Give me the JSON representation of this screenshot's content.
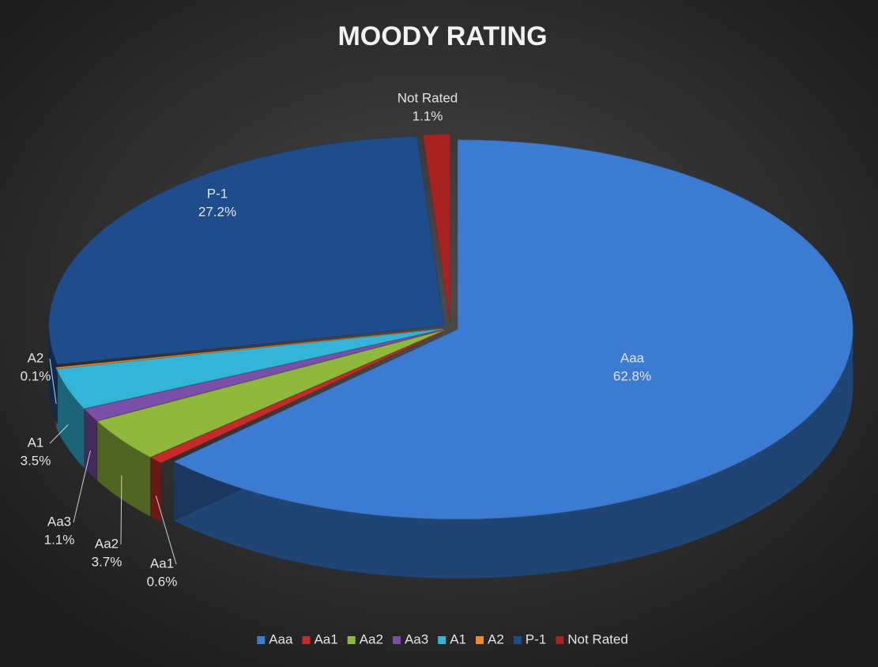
{
  "chart_data": {
    "type": "pie3d",
    "title": "MOODY RATING",
    "categories": [
      "Aaa",
      "Aa1",
      "Aa2",
      "Aa3",
      "A1",
      "A2",
      "P-1",
      "Not Rated"
    ],
    "values": [
      62.8,
      0.6,
      3.7,
      1.1,
      3.5,
      0.1,
      27.2,
      1.1
    ],
    "value_labels": [
      "62.8%",
      "0.6%",
      "3.7%",
      "1.1%",
      "3.5%",
      "0.1%",
      "27.2%",
      "1.1%"
    ],
    "colors": [
      "#3b7bd1",
      "#c62a2a",
      "#8fb83c",
      "#7b4fa8",
      "#33b5d8",
      "#f0892a",
      "#1f4c8a",
      "#a82222"
    ],
    "legend": "bottom"
  }
}
